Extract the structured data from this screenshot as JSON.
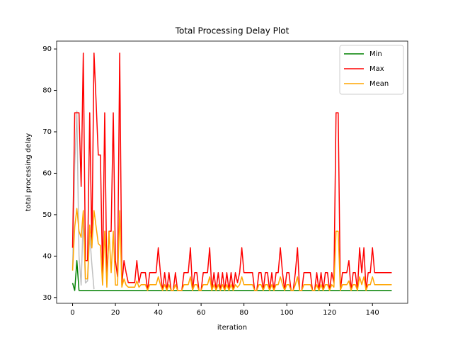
{
  "chart_data": {
    "type": "line",
    "title": "Total Processing Delay Plot",
    "x_label": "iteration",
    "y_label": "total processing delay",
    "x": [
      0,
      1,
      2,
      3,
      4,
      5,
      6,
      7,
      8,
      9,
      10,
      11,
      12,
      13,
      14,
      15,
      16,
      17,
      18,
      19,
      20,
      21,
      22,
      23,
      24,
      25,
      26,
      27,
      28,
      29,
      30,
      31,
      32,
      33,
      34,
      35,
      36,
      37,
      38,
      39,
      40,
      41,
      42,
      43,
      44,
      45,
      46,
      47,
      48,
      49,
      50,
      51,
      52,
      53,
      54,
      55,
      56,
      57,
      58,
      59,
      60,
      61,
      62,
      63,
      64,
      65,
      66,
      67,
      68,
      69,
      70,
      71,
      72,
      73,
      74,
      75,
      76,
      77,
      78,
      79,
      80,
      81,
      82,
      83,
      84,
      85,
      86,
      87,
      88,
      89,
      90,
      91,
      92,
      93,
      94,
      95,
      96,
      97,
      98,
      99,
      100,
      101,
      102,
      103,
      104,
      105,
      106,
      107,
      108,
      109,
      110,
      111,
      112,
      113,
      114,
      115,
      116,
      117,
      118,
      119,
      120,
      121,
      122,
      123,
      124,
      125,
      126,
      127,
      128,
      129,
      130,
      131,
      132,
      133,
      134,
      135,
      136,
      137,
      138,
      139,
      140,
      141,
      142,
      143,
      144,
      145,
      146,
      147,
      148,
      149
    ],
    "xlim": [
      -7.45,
      156.45
    ],
    "xticks": [
      0,
      20,
      40,
      60,
      80,
      100,
      120,
      140
    ],
    "ylim": [
      28.6,
      91.9
    ],
    "yticks": [
      30,
      40,
      50,
      60,
      70,
      80,
      90
    ],
    "legend": "upper right",
    "series": [
      {
        "color": "#c0c0c0",
        "values": [
          37,
          62,
          75,
          40,
          33,
          50,
          33.5,
          34,
          45,
          38,
          32,
          null,
          null,
          null,
          null,
          null,
          null,
          null,
          null,
          null,
          null,
          null,
          null,
          null,
          null,
          null,
          null,
          null,
          null,
          null,
          null,
          null,
          null,
          null,
          null,
          null,
          null,
          null,
          null,
          null,
          null,
          null,
          null,
          null,
          null,
          null,
          null,
          null,
          null,
          null,
          null,
          null,
          null,
          null,
          null,
          null,
          null,
          null,
          null,
          null,
          null,
          null,
          null,
          null,
          null,
          null,
          null,
          null,
          null,
          null,
          null,
          null,
          null,
          null,
          null,
          null,
          null,
          null,
          null,
          null,
          null,
          null,
          null,
          null,
          null,
          null,
          null,
          null,
          null,
          null,
          null,
          null,
          null,
          null,
          null,
          null,
          null,
          null,
          null,
          null,
          null,
          null,
          null,
          null,
          null,
          null,
          null,
          null,
          null,
          null,
          null,
          null,
          null,
          null,
          null,
          null,
          null,
          null,
          null,
          null,
          null,
          null,
          null,
          null,
          null,
          null,
          null,
          null,
          null,
          null,
          null,
          null,
          null,
          null,
          null,
          null,
          null,
          null,
          null,
          null,
          null,
          null,
          null,
          null,
          null,
          null,
          null,
          null,
          null,
          null
        ]
      },
      {
        "name": "Min",
        "color": "#008000",
        "values": [
          33.5,
          31.7,
          38.9,
          31.7,
          31.7,
          31.7,
          31.7,
          31.7,
          31.7,
          31.7,
          31.7,
          31.7,
          31.7,
          31.7,
          31.7,
          31.7,
          31.7,
          31.7,
          31.7,
          31.7,
          31.7,
          31.7,
          31.7,
          31.7,
          31.7,
          31.7,
          31.7,
          31.7,
          31.7,
          31.7,
          31.7,
          31.7,
          31.7,
          31.7,
          31.7,
          31.7,
          31.7,
          31.7,
          31.7,
          31.7,
          31.7,
          31.7,
          31.7,
          31.7,
          31.7,
          31.7,
          31.7,
          31.7,
          31.7,
          31.7,
          31.7,
          31.7,
          31.7,
          31.7,
          31.7,
          31.7,
          31.7,
          31.7,
          31.7,
          31.7,
          31.7,
          31.7,
          31.7,
          31.7,
          31.7,
          31.7,
          31.7,
          31.7,
          31.7,
          31.7,
          31.7,
          31.7,
          31.7,
          31.7,
          31.7,
          31.7,
          31.7,
          31.7,
          31.7,
          31.7,
          31.7,
          31.7,
          31.7,
          31.7,
          31.7,
          31.7,
          31.7,
          31.7,
          31.7,
          31.7,
          31.7,
          31.7,
          31.7,
          31.7,
          31.7,
          31.7,
          31.7,
          31.7,
          31.7,
          31.7,
          31.7,
          31.7,
          31.7,
          31.7,
          31.7,
          31.7,
          31.7,
          31.7,
          31.7,
          31.7,
          31.7,
          31.7,
          31.7,
          31.7,
          31.7,
          31.7,
          31.7,
          31.7,
          31.7,
          31.7,
          31.7,
          31.7,
          31.7,
          31.7,
          31.7,
          31.7,
          31.7,
          31.7,
          31.7,
          31.7,
          31.7,
          31.7,
          31.7,
          31.7,
          31.7,
          31.7,
          31.7,
          31.7,
          31.7,
          31.7,
          31.7,
          31.7,
          31.7,
          31.7,
          31.7,
          31.7,
          31.7,
          31.7,
          31.7,
          31.7
        ]
      },
      {
        "name": "Max",
        "color": "#ff0000",
        "values": [
          42,
          74.6,
          74.6,
          74.6,
          56.8,
          89,
          38.9,
          38.9,
          74.6,
          42,
          89,
          77,
          64.4,
          64.4,
          35,
          74.6,
          34,
          46,
          46,
          74.6,
          38.9,
          35,
          89,
          33,
          38.9,
          36,
          33.6,
          33.6,
          33.6,
          33.6,
          38.9,
          33.6,
          36,
          36,
          36,
          31.7,
          36,
          36,
          36,
          36,
          42,
          36,
          31.7,
          36,
          31.7,
          36,
          31.7,
          31.7,
          36,
          31.7,
          31.7,
          31.7,
          36,
          36,
          36,
          42,
          31.7,
          36,
          36,
          31.7,
          31.7,
          36,
          36,
          36,
          42,
          31.7,
          36,
          31.7,
          36,
          31.7,
          36,
          31.7,
          36,
          31.7,
          36,
          31.7,
          36,
          33.6,
          36,
          42,
          36,
          36,
          36,
          36,
          36,
          31.7,
          31.7,
          36,
          36,
          31.7,
          36,
          36,
          31.7,
          36,
          31.7,
          36,
          36,
          42,
          36,
          31.7,
          36,
          36,
          31.7,
          31.7,
          36,
          42,
          31.7,
          31.7,
          36,
          36,
          36,
          36,
          31.7,
          31.7,
          36,
          31.7,
          36,
          31.7,
          36,
          36,
          31.7,
          36,
          33.6,
          74.6,
          74.6,
          31.7,
          36,
          36,
          36,
          38.9,
          31.7,
          36,
          36,
          31.7,
          42,
          36,
          42,
          31.7,
          36,
          36,
          42,
          36,
          36,
          36,
          36,
          36,
          36,
          36,
          36,
          36
        ]
      },
      {
        "name": "Mean",
        "color": "#ffa500",
        "values": [
          36.5,
          47,
          51.5,
          46,
          44.5,
          51,
          34.5,
          34.5,
          47.5,
          42,
          51,
          47,
          43,
          42.5,
          33,
          46,
          32.5,
          46,
          36,
          46,
          33,
          33,
          51,
          32.5,
          34.5,
          33,
          32.5,
          32.5,
          32.5,
          32.5,
          34,
          32.5,
          33.1,
          33.1,
          33.1,
          31.7,
          33.1,
          33.1,
          33.1,
          33.1,
          35,
          33.1,
          31.7,
          33.1,
          31.7,
          33.1,
          31.7,
          31.7,
          33.1,
          31.7,
          31.7,
          31.7,
          33.1,
          33.1,
          33.1,
          35,
          31.7,
          33.1,
          33.1,
          31.7,
          31.7,
          33.1,
          33.1,
          33.1,
          35,
          31.7,
          33.1,
          31.7,
          33.1,
          31.7,
          33.1,
          31.7,
          33.1,
          31.7,
          33.1,
          31.7,
          33.1,
          32.5,
          33.1,
          35,
          33.1,
          33.1,
          33.1,
          33.1,
          33.1,
          31.7,
          31.7,
          33.1,
          33.1,
          31.7,
          33.1,
          33.1,
          31.7,
          33.1,
          31.7,
          33.1,
          33.1,
          35,
          33.1,
          31.7,
          33.1,
          33.1,
          31.7,
          31.7,
          33.1,
          35,
          31.7,
          31.7,
          33.1,
          33.1,
          33.1,
          33.1,
          31.7,
          31.7,
          33.1,
          31.7,
          33.1,
          31.7,
          33.1,
          33.1,
          31.7,
          33.1,
          32.5,
          46,
          46,
          31.7,
          33.1,
          33.1,
          33.1,
          34,
          31.7,
          33.1,
          33.1,
          31.7,
          35,
          33.1,
          35,
          31.7,
          33.1,
          33.1,
          35,
          33.1,
          33.1,
          33.1,
          33.1,
          33.1,
          33.1,
          33.1,
          33.1,
          33.1
        ]
      }
    ]
  }
}
